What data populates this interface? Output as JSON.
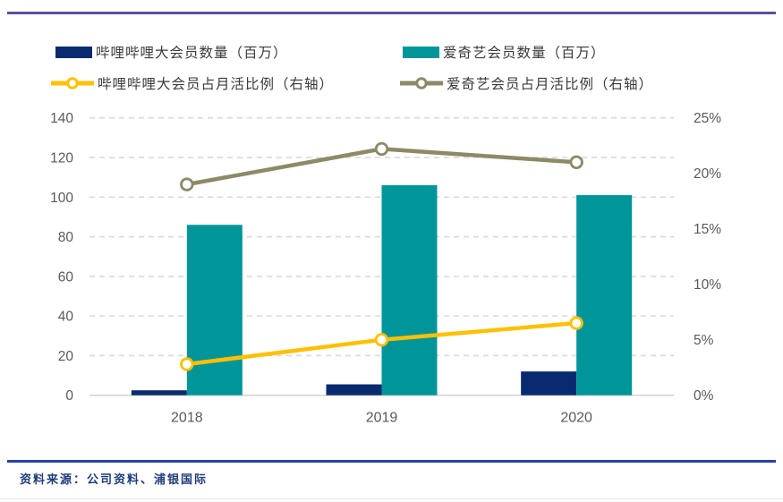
{
  "legend": {
    "items": [
      {
        "label": "哔哩哔哩大会员数量（百万）",
        "type": "bar",
        "color": "#082b70"
      },
      {
        "label": "爱奇艺会员数量（百万）",
        "type": "bar",
        "color": "#009699"
      },
      {
        "label": "哔哩哔哩大会员占月活比例（右轴）",
        "type": "line",
        "color": "#ffc000"
      },
      {
        "label": "爱奇艺会员占月活比例（右轴）",
        "type": "line",
        "color": "#8c8a67"
      }
    ]
  },
  "chart_data": {
    "type": "combo-bar-line",
    "categories": [
      "2018",
      "2019",
      "2020"
    ],
    "series": [
      {
        "name": "哔哩哔哩大会员数量（百万）",
        "type": "bar",
        "axis": "left",
        "color": "#082b70",
        "values": [
          2.5,
          5.5,
          12
        ]
      },
      {
        "name": "爱奇艺会员数量（百万）",
        "type": "bar",
        "axis": "left",
        "color": "#009699",
        "values": [
          86,
          106,
          101
        ]
      },
      {
        "name": "哔哩哔哩大会员占月活比例（右轴）",
        "type": "line",
        "axis": "right",
        "color": "#ffc000",
        "values": [
          2.8,
          5.0,
          6.5
        ]
      },
      {
        "name": "爱奇艺会员占月活比例（右轴）",
        "type": "line",
        "axis": "right",
        "color": "#8c8a67",
        "values": [
          19.0,
          22.2,
          21.0
        ]
      }
    ],
    "left_axis": {
      "min": 0,
      "max": 140,
      "step": 20,
      "ticks": [
        "0",
        "20",
        "40",
        "60",
        "80",
        "100",
        "120",
        "140"
      ]
    },
    "right_axis": {
      "min": 0,
      "max": 25,
      "step": 5,
      "ticks": [
        "0%",
        "5%",
        "10%",
        "15%",
        "20%",
        "25%"
      ],
      "unit": "%"
    },
    "grid": "horizontal-dashed",
    "legend_position": "top",
    "title": ""
  },
  "colors": {
    "top_rule": "#5b4f9f",
    "bottom_rule": "#2443a8",
    "gridline": "#d9d9d9",
    "axis_text": "#595959",
    "source_text": "#1f3d7a"
  },
  "source": {
    "text": "资料来源：公司资料、浦银国际"
  }
}
